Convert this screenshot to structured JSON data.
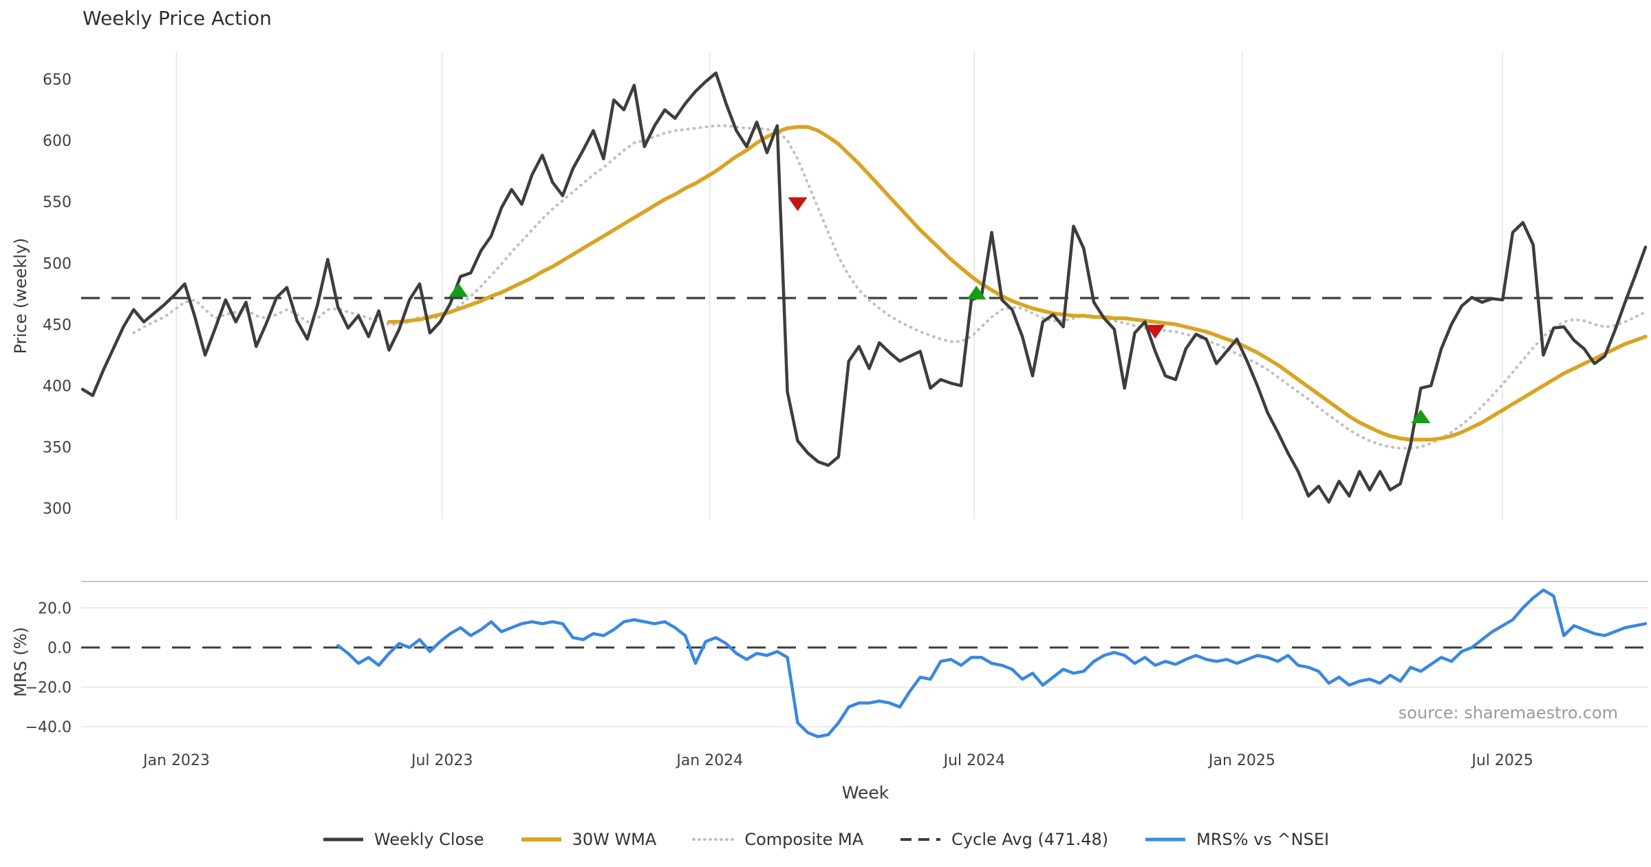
{
  "title": "Weekly Price Action",
  "axes": {
    "price_ylabel": "Price (weekly)",
    "mrs_ylabel": "MRS (%)",
    "xlabel": "Week"
  },
  "source_text": "source: sharemaestro.com",
  "colors": {
    "weekly_close": "#3d3d3d",
    "wma": "#d9a424",
    "composite": "#c0c0c0",
    "cycle_avg": "#3d3d3d",
    "mrs": "#3a87e0",
    "buy_marker": "#169c16",
    "sell_marker": "#c81414",
    "gridline": "#eaeaea",
    "spine": "#c6c6c6",
    "tick_text": "#3f3f3f"
  },
  "legend": {
    "items": [
      {
        "label": "Weekly Close",
        "style": "solid",
        "color": "#3d3d3d",
        "width": 5
      },
      {
        "label": "30W WMA",
        "style": "solid",
        "color": "#d9a424",
        "width": 6
      },
      {
        "label": "Composite MA",
        "style": "dotted",
        "color": "#c0c0c0",
        "width": 4
      },
      {
        "label": "Cycle Avg (471.48)",
        "style": "dashed",
        "color": "#3d3d3d",
        "width": 4
      },
      {
        "label": "MRS% vs ^NSEI",
        "style": "solid",
        "color": "#3a87e0",
        "width": 5
      }
    ]
  },
  "chart_data": {
    "type": "line",
    "title": "Weekly Price Action",
    "xlabel": "Week",
    "x_unit": "weekly index starting early Nov 2022",
    "x_ticks": [
      {
        "week": 9.2,
        "label": "Jan 2023"
      },
      {
        "week": 35.2,
        "label": "Jul 2023"
      },
      {
        "week": 61.4,
        "label": "Jan 2024"
      },
      {
        "week": 87.3,
        "label": "Jul 2024"
      },
      {
        "week": 113.5,
        "label": "Jan 2025"
      },
      {
        "week": 139.0,
        "label": "Jul 2025"
      }
    ],
    "price_panel": {
      "ylabel": "Price (weekly)",
      "ylim": [
        288,
        670
      ],
      "yticks": [
        650,
        600,
        550,
        500,
        450,
        400,
        350,
        300
      ],
      "cycle_avg": 471.48,
      "series": [
        {
          "name": "Weekly Close",
          "color": "#3d3d3d",
          "style": "solid",
          "width": 4.5,
          "start_week": 0,
          "values": [
            397,
            392,
            412,
            430,
            448,
            462,
            452,
            459,
            466,
            474,
            483,
            456,
            425,
            447,
            470,
            452,
            468,
            432,
            451,
            472,
            480,
            453,
            438,
            466,
            503,
            464,
            447,
            457,
            440,
            461,
            429,
            446,
            470,
            483,
            443,
            452,
            467,
            489,
            492,
            510,
            522,
            545,
            560,
            548,
            572,
            588,
            566,
            555,
            577,
            592,
            608,
            585,
            633,
            625,
            645,
            595,
            612,
            625,
            618,
            630,
            640,
            648,
            655,
            630,
            608,
            595,
            615,
            590,
            612,
            395,
            355,
            345,
            338,
            335,
            342,
            420,
            432,
            414,
            435,
            427,
            420,
            424,
            428,
            398,
            405,
            402,
            400,
            470,
            473,
            525,
            470,
            462,
            440,
            408,
            452,
            458,
            448,
            530,
            512,
            468,
            455,
            446,
            398,
            443,
            452,
            428,
            408,
            405,
            430,
            442,
            438,
            418,
            428,
            438,
            420,
            400,
            378,
            362,
            345,
            330,
            310,
            318,
            305,
            322,
            310,
            330,
            315,
            330,
            315,
            320,
            352,
            398,
            400,
            430,
            450,
            465,
            472,
            468,
            471,
            470,
            525,
            533,
            515,
            425,
            447,
            448,
            437,
            430,
            418,
            424,
            445,
            468,
            490,
            513
          ]
        },
        {
          "name": "30W WMA",
          "color": "#d9a424",
          "style": "solid",
          "width": 5.5,
          "start_week": 30,
          "values": [
            452,
            452,
            453,
            454,
            456,
            458,
            460,
            463,
            466,
            469,
            473,
            476,
            480,
            484,
            488,
            493,
            497,
            502,
            507,
            512,
            517,
            522,
            527,
            532,
            537,
            542,
            547,
            552,
            556,
            561,
            565,
            570,
            575,
            581,
            587,
            592,
            598,
            603,
            607,
            610,
            611,
            611,
            608,
            603,
            597,
            589,
            581,
            572,
            563,
            554,
            545,
            536,
            527,
            519,
            511,
            503,
            496,
            489,
            483,
            478,
            473,
            469,
            466,
            463,
            461,
            459,
            458,
            457,
            457,
            456,
            456,
            455,
            455,
            454,
            453,
            452,
            451,
            450,
            448,
            446,
            444,
            441,
            438,
            435,
            431,
            427,
            422,
            417,
            411,
            405,
            399,
            393,
            387,
            381,
            375,
            370,
            366,
            362,
            359,
            357,
            356,
            356,
            356,
            357,
            359,
            362,
            366,
            370,
            375,
            380,
            385,
            390,
            395,
            400,
            405,
            410,
            414,
            418,
            422,
            426,
            430,
            434,
            437,
            440
          ]
        },
        {
          "name": "Composite MA",
          "color": "#c0c0c0",
          "style": "dotted",
          "width": 4,
          "start_week": 5,
          "values": [
            443,
            448,
            452,
            456,
            462,
            468,
            470,
            462,
            455,
            458,
            460,
            462,
            457,
            455,
            458,
            462,
            458,
            452,
            455,
            462,
            463,
            460,
            458,
            455,
            452,
            450,
            450,
            452,
            456,
            455,
            456,
            460,
            466,
            473,
            481,
            490,
            499,
            509,
            518,
            527,
            536,
            544,
            551,
            558,
            565,
            572,
            578,
            585,
            592,
            598,
            600,
            603,
            606,
            608,
            609,
            610,
            611,
            612,
            612,
            611,
            610,
            610,
            609,
            608,
            600,
            585,
            565,
            545,
            525,
            505,
            490,
            478,
            470,
            463,
            457,
            452,
            448,
            444,
            441,
            438,
            436,
            436,
            440,
            448,
            456,
            462,
            464,
            463,
            459,
            455,
            453,
            453,
            455,
            457,
            457,
            455,
            453,
            451,
            449,
            447,
            446,
            445,
            444,
            442,
            440,
            437,
            434,
            430,
            426,
            422,
            418,
            413,
            407,
            401,
            395,
            389,
            382,
            376,
            370,
            364,
            359,
            355,
            352,
            350,
            349,
            349,
            350,
            353,
            357,
            362,
            368,
            375,
            383,
            392,
            401,
            411,
            421,
            431,
            440,
            447,
            452,
            454,
            453,
            450,
            448,
            449,
            452,
            456,
            460
          ]
        }
      ],
      "markers": [
        {
          "type": "buy",
          "week": 36.8,
          "price": 478
        },
        {
          "type": "sell",
          "week": 70,
          "price": 548
        },
        {
          "type": "buy",
          "week": 87.5,
          "price": 476
        },
        {
          "type": "sell",
          "week": 105,
          "price": 444
        },
        {
          "type": "buy",
          "week": 131,
          "price": 375
        }
      ]
    },
    "mrs_panel": {
      "ylabel": "MRS (%)",
      "ylim": [
        -46.5,
        33.5
      ],
      "yticks": [
        {
          "v": 20,
          "label": "20.0"
        },
        {
          "v": 0,
          "label": "0.0"
        },
        {
          "v": -20,
          "label": "−20.0"
        },
        {
          "v": -40,
          "label": "−40.0"
        }
      ],
      "gridlines_at": [
        20,
        -20,
        -40
      ],
      "zero_line": 0.0,
      "series": [
        {
          "name": "MRS% vs ^NSEI",
          "color": "#3a87e0",
          "style": "solid",
          "width": 4.5,
          "start_week": 25,
          "values": [
            1,
            -3,
            -8,
            -5,
            -9,
            -3,
            2,
            0,
            4,
            -2,
            3,
            7,
            10,
            6,
            9,
            13,
            8,
            10,
            12,
            13,
            12,
            13,
            12,
            5,
            4,
            7,
            6,
            9,
            13,
            14,
            13,
            12,
            13,
            10,
            6,
            -8,
            3,
            5,
            2,
            -3,
            -6,
            -3,
            -4,
            -2,
            -5,
            -38,
            -43,
            -45,
            -44,
            -38,
            -30,
            -28,
            -28,
            -27,
            -28,
            -30,
            -22,
            -15,
            -16,
            -7,
            -6,
            -9,
            -5,
            -5,
            -8,
            -9,
            -11,
            -16,
            -13,
            -19,
            -15,
            -11,
            -13,
            -12,
            -7,
            -4,
            -2.5,
            -4,
            -8,
            -5,
            -9,
            -7,
            -8.5,
            -6,
            -4,
            -6,
            -7,
            -6,
            -8,
            -6,
            -4,
            -5,
            -7,
            -4,
            -9,
            -10,
            -12,
            -18,
            -15,
            -19,
            -17,
            -16,
            -18,
            -14,
            -17,
            -10,
            -12,
            -8.5,
            -5,
            -7,
            -2,
            0,
            4,
            8,
            11,
            14,
            20,
            25,
            29,
            26,
            6,
            11,
            9,
            7,
            6,
            8,
            10,
            11,
            12
          ]
        }
      ]
    }
  }
}
